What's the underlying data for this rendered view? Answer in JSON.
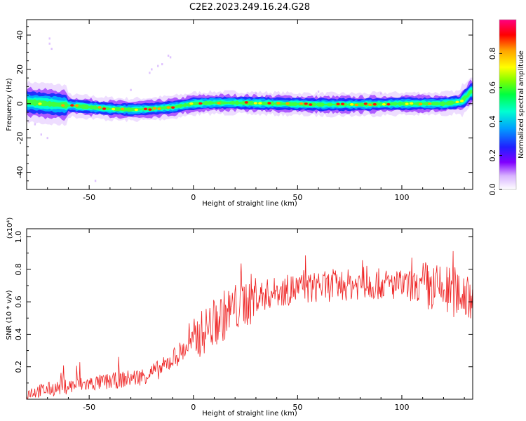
{
  "title": "C2E2.2023.249.16.24.G28",
  "chart_data": [
    {
      "type": "heatmap",
      "xlabel": "Height of straight line (km)",
      "ylabel": "Frequency (Hz)",
      "xlim": [
        -80,
        134
      ],
      "ylim": [
        -50,
        49
      ],
      "xticks": [
        -50,
        0,
        50,
        100
      ],
      "yticks": [
        -40,
        -20,
        0,
        20,
        40
      ],
      "colorbar": {
        "label": "Normalized spectral amplitude",
        "range": [
          0,
          1
        ],
        "ticks": [
          0.0,
          0.2,
          0.4,
          0.6,
          0.8
        ],
        "colors": [
          "#ffffff",
          "#d9b3ff",
          "#8000ff",
          "#2020ff",
          "#00a0ff",
          "#00ffd0",
          "#00ff40",
          "#80ff00",
          "#ffff00",
          "#ffa000",
          "#ff0000",
          "#ff0080"
        ]
      },
      "ridge": {
        "x": [
          -80,
          -70,
          -60,
          -50,
          -40,
          -30,
          -20,
          -10,
          -5,
          0,
          10,
          20,
          40,
          60,
          80,
          100,
          120,
          128,
          131,
          133
        ],
        "frequency": [
          1,
          0,
          -1,
          -2,
          -3,
          -3.5,
          -3,
          -2,
          -1,
          0,
          0.5,
          0.5,
          0,
          -0.5,
          -0.5,
          0,
          0,
          1,
          4,
          7
        ]
      }
    },
    {
      "type": "line",
      "xlabel": "Height of straight line (km)",
      "ylabel": "SNR (10 * v/v)",
      "yscale_note": "(x10⁴)",
      "xlim": [
        -80,
        134
      ],
      "ylim": [
        0,
        1.05
      ],
      "xticks": [
        -50,
        0,
        50,
        100
      ],
      "yticks": [
        0.2,
        0.4,
        0.6,
        0.8,
        1.0
      ],
      "line_color": "#ee2222",
      "trend": {
        "x": [
          -80,
          -60,
          -40,
          -25,
          -15,
          -10,
          -5,
          0,
          5,
          10,
          15,
          20,
          25,
          30,
          40,
          50,
          60,
          70,
          80,
          90,
          100,
          110,
          120,
          125,
          130,
          134
        ],
        "y": [
          0.04,
          0.08,
          0.11,
          0.14,
          0.19,
          0.25,
          0.3,
          0.36,
          0.42,
          0.47,
          0.52,
          0.56,
          0.6,
          0.63,
          0.66,
          0.68,
          0.69,
          0.7,
          0.71,
          0.71,
          0.7,
          0.69,
          0.67,
          0.66,
          0.65,
          0.65
        ]
      }
    }
  ]
}
